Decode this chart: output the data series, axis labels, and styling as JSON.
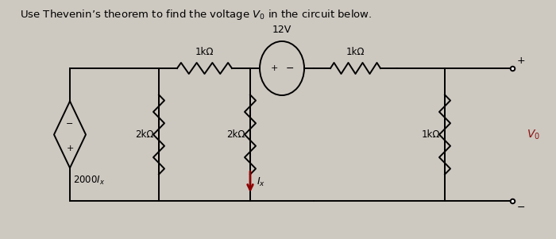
{
  "title": "Use Thevenin’s theorem to find the voltage $V_0$ in the circuit below.",
  "bg_color": "#cdc8c0",
  "line_color": "black",
  "label_1kohm_top_left": "1kΩ",
  "label_2kohm_left": "2kΩ",
  "label_2kohm_mid": "2kΩ",
  "label_1kohm_top_right": "1kΩ",
  "label_1kohm_right": "1kΩ",
  "label_12V": "12V",
  "label_Ix": "$I_x$",
  "label_dep_src": "2000$I_x$",
  "label_Vo": "$V_0$",
  "arrow_color": "#8b0000",
  "Vo_color": "#8b1010",
  "figsize": [
    7.0,
    3.01
  ],
  "dpi": 100
}
